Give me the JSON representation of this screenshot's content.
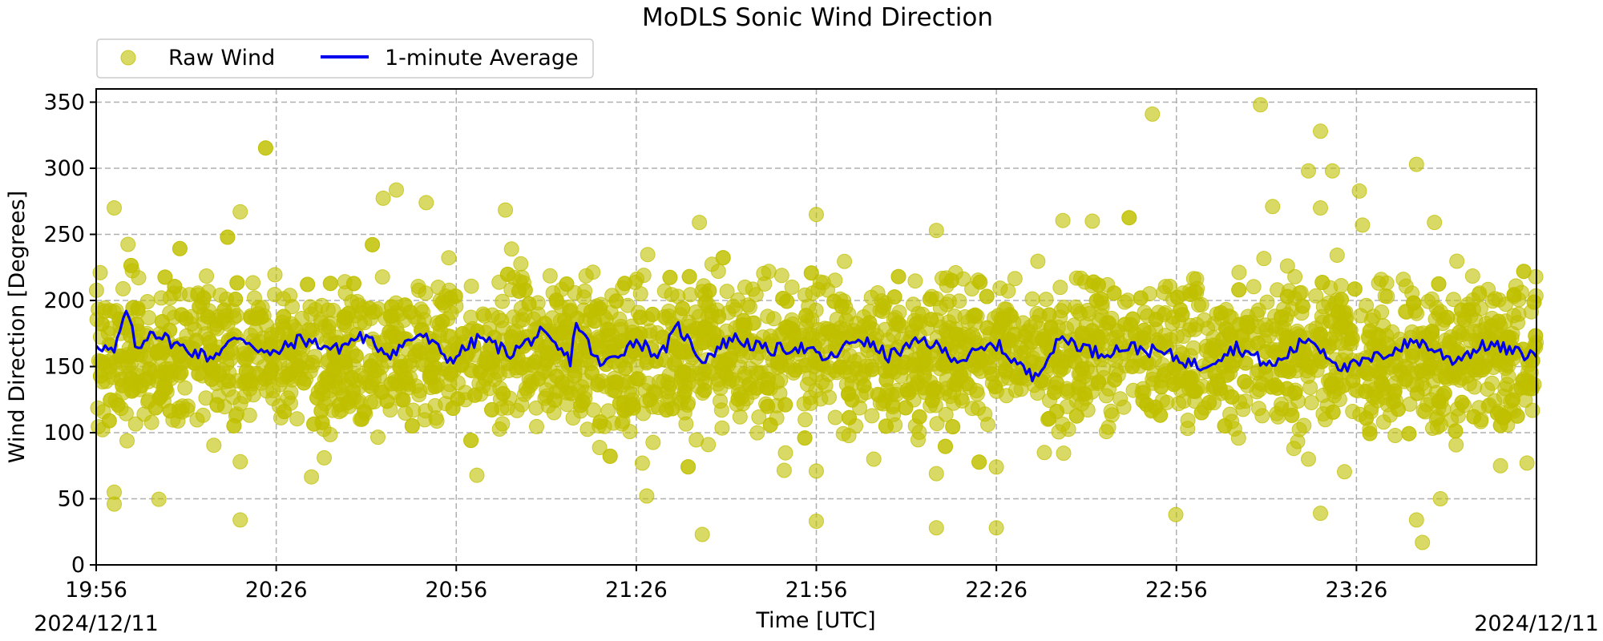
{
  "chart_data": {
    "type": "scatter",
    "title": "MoDLS Sonic Wind Direction",
    "xlabel": "Time [UTC]",
    "ylabel": "Wind Direction [Degrees]",
    "date_start_label": "2024/12/11",
    "date_end_label": "2024/12/11",
    "x_tick_labels": [
      "19:56",
      "20:26",
      "20:56",
      "21:26",
      "21:56",
      "22:26",
      "22:56",
      "23:26"
    ],
    "y_ticks": [
      0,
      50,
      100,
      150,
      200,
      250,
      300,
      350
    ],
    "ylim": [
      0,
      360
    ],
    "xlim": [
      "19:56",
      "23:56"
    ],
    "grid": true,
    "legend_position": "above top-left",
    "series": [
      {
        "name": "Raw Wind",
        "kind": "scatter",
        "color": "#bfbf00",
        "typical_center": 160,
        "typical_spread": 30,
        "outliers": [
          {
            "x": "19:59",
            "y": 270
          },
          {
            "x": "19:59",
            "y": 55
          },
          {
            "x": "19:59",
            "y": 46
          },
          {
            "x": "20:20",
            "y": 34
          },
          {
            "x": "20:20",
            "y": 267
          },
          {
            "x": "20:20",
            "y": 78
          },
          {
            "x": "20:34",
            "y": 81
          },
          {
            "x": "20:51",
            "y": 274
          },
          {
            "x": "21:27",
            "y": 77
          },
          {
            "x": "21:37",
            "y": 23
          },
          {
            "x": "21:38",
            "y": 91
          },
          {
            "x": "21:56",
            "y": 265
          },
          {
            "x": "21:56",
            "y": 33
          },
          {
            "x": "21:56",
            "y": 71
          },
          {
            "x": "22:16",
            "y": 253
          },
          {
            "x": "22:16",
            "y": 28
          },
          {
            "x": "22:16",
            "y": 69
          },
          {
            "x": "22:26",
            "y": 28
          },
          {
            "x": "22:26",
            "y": 74
          },
          {
            "x": "22:42",
            "y": 260
          },
          {
            "x": "22:52",
            "y": 341
          },
          {
            "x": "23:10",
            "y": 348
          },
          {
            "x": "23:18",
            "y": 298
          },
          {
            "x": "23:18",
            "y": 80
          },
          {
            "x": "23:20",
            "y": 328
          },
          {
            "x": "23:20",
            "y": 270
          },
          {
            "x": "23:20",
            "y": 39
          },
          {
            "x": "23:22",
            "y": 298
          },
          {
            "x": "23:27",
            "y": 257
          },
          {
            "x": "23:36",
            "y": 303
          },
          {
            "x": "23:37",
            "y": 17
          },
          {
            "x": "23:36",
            "y": 34
          },
          {
            "x": "23:39",
            "y": 259
          },
          {
            "x": "23:40",
            "y": 50
          },
          {
            "x": "23:50",
            "y": 75
          }
        ]
      },
      {
        "name": "1-minute Average",
        "kind": "line",
        "color": "#0000ee",
        "points": [
          {
            "x": "19:56",
            "y": 168
          },
          {
            "x": "19:59",
            "y": 160
          },
          {
            "x": "20:01",
            "y": 192
          },
          {
            "x": "20:03",
            "y": 160
          },
          {
            "x": "20:05",
            "y": 178
          },
          {
            "x": "20:10",
            "y": 165
          },
          {
            "x": "20:15",
            "y": 157
          },
          {
            "x": "20:20",
            "y": 173
          },
          {
            "x": "20:25",
            "y": 158
          },
          {
            "x": "20:30",
            "y": 171
          },
          {
            "x": "20:36",
            "y": 163
          },
          {
            "x": "20:40",
            "y": 173
          },
          {
            "x": "20:45",
            "y": 160
          },
          {
            "x": "20:50",
            "y": 175
          },
          {
            "x": "20:55",
            "y": 155
          },
          {
            "x": "21:00",
            "y": 172
          },
          {
            "x": "21:05",
            "y": 160
          },
          {
            "x": "21:10",
            "y": 175
          },
          {
            "x": "21:15",
            "y": 155
          },
          {
            "x": "21:16",
            "y": 184
          },
          {
            "x": "21:20",
            "y": 150
          },
          {
            "x": "21:26",
            "y": 170
          },
          {
            "x": "21:30",
            "y": 158
          },
          {
            "x": "21:33",
            "y": 180
          },
          {
            "x": "21:37",
            "y": 155
          },
          {
            "x": "21:42",
            "y": 172
          },
          {
            "x": "21:48",
            "y": 162
          },
          {
            "x": "21:53",
            "y": 165
          },
          {
            "x": "21:58",
            "y": 155
          },
          {
            "x": "22:03",
            "y": 172
          },
          {
            "x": "22:08",
            "y": 158
          },
          {
            "x": "22:14",
            "y": 170
          },
          {
            "x": "22:20",
            "y": 155
          },
          {
            "x": "22:26",
            "y": 167
          },
          {
            "x": "22:32",
            "y": 142
          },
          {
            "x": "22:37",
            "y": 172
          },
          {
            "x": "22:43",
            "y": 160
          },
          {
            "x": "22:48",
            "y": 165
          },
          {
            "x": "22:54",
            "y": 160
          },
          {
            "x": "23:00",
            "y": 150
          },
          {
            "x": "23:06",
            "y": 165
          },
          {
            "x": "23:12",
            "y": 150
          },
          {
            "x": "23:18",
            "y": 172
          },
          {
            "x": "23:24",
            "y": 148
          },
          {
            "x": "23:30",
            "y": 158
          },
          {
            "x": "23:36",
            "y": 170
          },
          {
            "x": "23:42",
            "y": 155
          },
          {
            "x": "23:48",
            "y": 167
          },
          {
            "x": "23:53",
            "y": 160
          },
          {
            "x": "23:56",
            "y": 158
          }
        ]
      }
    ]
  }
}
